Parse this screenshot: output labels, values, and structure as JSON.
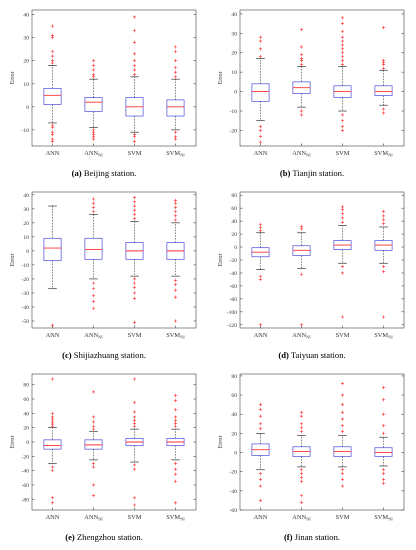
{
  "style": {
    "box_color": "#4a4adc",
    "median_color": "#ff3030",
    "outlier_color": "#ff2a2a",
    "whisker_color": "#111111",
    "axis_color": "#444444"
  },
  "chart_data": [
    {
      "type": "box",
      "caption_label": "(a)",
      "caption_text": "Beijing station.",
      "ylabel": "Error",
      "yticks": [
        -10,
        0,
        10,
        20,
        30,
        40
      ],
      "ylim": [
        -17,
        42
      ],
      "categories": [
        {
          "base": "ANN",
          "sub": ""
        },
        {
          "base": "ANN",
          "sub": "NI"
        },
        {
          "base": "SVM",
          "sub": ""
        },
        {
          "base": "SVM",
          "sub": "NI"
        }
      ],
      "boxes": [
        {
          "whislo": -7,
          "q1": 1,
          "med": 5,
          "q3": 8,
          "whishi": 18,
          "outliers": [
            -8,
            -9,
            -11,
            -12,
            -14,
            -15,
            19,
            20,
            22,
            24,
            30,
            31,
            35
          ]
        },
        {
          "whislo": -9,
          "q1": -2,
          "med": 2,
          "q3": 4,
          "whishi": 12,
          "outliers": [
            -10,
            -11,
            -12,
            -13,
            -14,
            13,
            14,
            16,
            18,
            20
          ]
        },
        {
          "whislo": -11,
          "q1": -4,
          "med": 0,
          "q3": 4,
          "whishi": 13,
          "outliers": [
            -12,
            -13,
            -15,
            14,
            16,
            18,
            20,
            23,
            28,
            33,
            39
          ]
        },
        {
          "whislo": -10,
          "q1": -4,
          "med": 0,
          "q3": 3,
          "whishi": 12,
          "outliers": [
            -11,
            -13,
            -14,
            13,
            15,
            17,
            20,
            24,
            26
          ]
        }
      ]
    },
    {
      "type": "box",
      "caption_label": "(b)",
      "caption_text": "Tianjin station.",
      "ylabel": "Error",
      "yticks": [
        -20,
        -10,
        0,
        10,
        20,
        30,
        40
      ],
      "ylim": [
        -28,
        42
      ],
      "categories": [
        {
          "base": "ANN",
          "sub": ""
        },
        {
          "base": "ANN",
          "sub": "NI"
        },
        {
          "base": "SVM",
          "sub": ""
        },
        {
          "base": "SVM",
          "sub": "NI"
        }
      ],
      "boxes": [
        {
          "whislo": -15,
          "q1": -5,
          "med": 0,
          "q3": 4,
          "whishi": 17,
          "outliers": [
            -18,
            -20,
            -23,
            -26,
            18,
            22,
            26,
            28
          ]
        },
        {
          "whislo": -8,
          "q1": -1,
          "med": 2,
          "q3": 5,
          "whishi": 13,
          "outliers": [
            -10,
            -12,
            14,
            16,
            17,
            19,
            23,
            32
          ]
        },
        {
          "whislo": -10,
          "q1": -3,
          "med": 0,
          "q3": 3,
          "whishi": 13,
          "outliers": [
            -12,
            -15,
            -18,
            -20,
            14,
            16,
            18,
            20,
            22,
            24,
            26,
            28,
            31,
            35,
            38
          ]
        },
        {
          "whislo": -7,
          "q1": -2,
          "med": 0,
          "q3": 3,
          "whishi": 11,
          "outliers": [
            -9,
            -11,
            12,
            14,
            15,
            16,
            33
          ]
        }
      ]
    },
    {
      "type": "box",
      "caption_label": "(c)",
      "caption_text": "Shijiazhuang station.",
      "ylabel": "Error",
      "yticks": [
        -50,
        -40,
        -30,
        -20,
        -10,
        0,
        10,
        20,
        30,
        40
      ],
      "ylim": [
        -55,
        42
      ],
      "categories": [
        {
          "base": "ANN",
          "sub": ""
        },
        {
          "base": "ANN",
          "sub": "NI"
        },
        {
          "base": "SVM",
          "sub": ""
        },
        {
          "base": "SVM",
          "sub": "NI"
        }
      ],
      "boxes": [
        {
          "whislo": -27,
          "q1": -7,
          "med": 2,
          "q3": 9,
          "whishi": 32,
          "outliers": [
            -53
          ]
        },
        {
          "whislo": -20,
          "q1": -6,
          "med": 1,
          "q3": 9,
          "whishi": 26,
          "outliers": [
            -23,
            -27,
            -32,
            -36,
            -41,
            28,
            31,
            34,
            37
          ]
        },
        {
          "whislo": -18,
          "q1": -6,
          "med": 0,
          "q3": 6,
          "whishi": 21,
          "outliers": [
            -20,
            -23,
            -26,
            -30,
            -34,
            -51,
            23,
            26,
            29,
            32,
            35,
            38
          ]
        },
        {
          "whislo": -18,
          "q1": -6,
          "med": 0,
          "q3": 6,
          "whishi": 20,
          "outliers": [
            -21,
            -24,
            -28,
            -33,
            -50,
            22,
            25,
            28,
            31,
            34,
            36
          ]
        }
      ]
    },
    {
      "type": "box",
      "caption_label": "(d)",
      "caption_text": "Taiyuan station.",
      "ylabel": "Error",
      "yticks": [
        -120,
        -100,
        -80,
        -60,
        -40,
        -20,
        0,
        20,
        40,
        60,
        80
      ],
      "ylim": [
        -125,
        85
      ],
      "categories": [
        {
          "base": "ANN",
          "sub": ""
        },
        {
          "base": "ANN",
          "sub": "NI"
        },
        {
          "base": "SVM",
          "sub": ""
        },
        {
          "base": "SVM",
          "sub": "NI"
        }
      ],
      "boxes": [
        {
          "whislo": -35,
          "q1": -15,
          "med": -8,
          "q3": -1,
          "whishi": 22,
          "outliers": [
            -45,
            -50,
            -120,
            25,
            30,
            35
          ]
        },
        {
          "whislo": -33,
          "q1": -13,
          "med": -5,
          "q3": 2,
          "whishi": 22,
          "outliers": [
            -42,
            -120,
            28,
            32
          ]
        },
        {
          "whislo": -25,
          "q1": -4,
          "med": 3,
          "q3": 10,
          "whishi": 33,
          "outliers": [
            -30,
            -40,
            -108,
            38,
            45,
            52,
            58,
            62
          ]
        },
        {
          "whislo": -25,
          "q1": -5,
          "med": 3,
          "q3": 10,
          "whishi": 31,
          "outliers": [
            -30,
            -38,
            -108,
            36,
            42,
            48,
            55
          ]
        }
      ]
    },
    {
      "type": "box",
      "caption_label": "(e)",
      "caption_text": "Zhengzhou station.",
      "ylabel": "Error",
      "yticks": [
        -80,
        -60,
        -40,
        -20,
        0,
        20,
        40,
        60,
        80
      ],
      "ylim": [
        -95,
        95
      ],
      "categories": [
        {
          "base": "ANN",
          "sub": ""
        },
        {
          "base": "ANN",
          "sub": "NI"
        },
        {
          "base": "SVM",
          "sub": ""
        },
        {
          "base": "SVM",
          "sub": "NI"
        }
      ],
      "boxes": [
        {
          "whislo": -30,
          "q1": -10,
          "med": -5,
          "q3": 3,
          "whishi": 20,
          "outliers": [
            -35,
            -40,
            -78,
            -85,
            22,
            25,
            28,
            32,
            35,
            40,
            88
          ]
        },
        {
          "whislo": -25,
          "q1": -10,
          "med": -4,
          "q3": 3,
          "whishi": 15,
          "outliers": [
            -30,
            -35,
            -60,
            -75,
            18,
            22,
            28,
            35,
            70
          ]
        },
        {
          "whislo": -28,
          "q1": -5,
          "med": 0,
          "q3": 5,
          "whishi": 18,
          "outliers": [
            -32,
            -38,
            -78,
            -88,
            22,
            26,
            30,
            35,
            42,
            55,
            88
          ]
        },
        {
          "whislo": -25,
          "q1": -5,
          "med": 0,
          "q3": 5,
          "whishi": 18,
          "outliers": [
            -30,
            -38,
            -45,
            -55,
            -85,
            22,
            26,
            30,
            35,
            45,
            58,
            65
          ]
        }
      ]
    },
    {
      "type": "box",
      "caption_label": "(f)",
      "caption_text": "Jinan station.",
      "ylabel": "Error",
      "yticks": [
        -60,
        -40,
        -20,
        0,
        20,
        40,
        60,
        80
      ],
      "ylim": [
        -60,
        82
      ],
      "categories": [
        {
          "base": "ANN",
          "sub": ""
        },
        {
          "base": "ANN",
          "sub": "NI"
        },
        {
          "base": "SVM",
          "sub": ""
        },
        {
          "base": "SVM",
          "sub": "NI"
        }
      ],
      "boxes": [
        {
          "whislo": -18,
          "q1": -3,
          "med": 3,
          "q3": 9,
          "whishi": 20,
          "outliers": [
            -22,
            -28,
            -35,
            -50,
            25,
            30,
            38,
            45,
            50
          ]
        },
        {
          "whislo": -15,
          "q1": -4,
          "med": 1,
          "q3": 6,
          "whishi": 18,
          "outliers": [
            -18,
            -22,
            -26,
            -30,
            -45,
            -52,
            22,
            26,
            30,
            38,
            42
          ]
        },
        {
          "whislo": -15,
          "q1": -4,
          "med": 1,
          "q3": 6,
          "whishi": 18,
          "outliers": [
            -18,
            -22,
            -28,
            -35,
            22,
            28,
            35,
            42,
            50,
            60,
            72
          ]
        },
        {
          "whislo": -14,
          "q1": -4,
          "med": 0,
          "q3": 5,
          "whishi": 16,
          "outliers": [
            -18,
            -22,
            -28,
            -32,
            20,
            28,
            40,
            55,
            68
          ]
        }
      ]
    }
  ]
}
